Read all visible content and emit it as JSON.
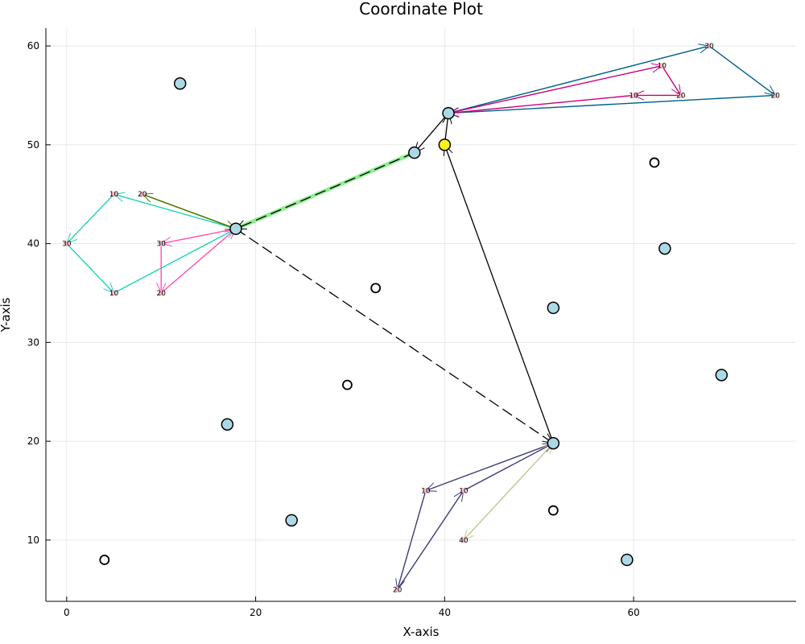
{
  "chart_data": {
    "type": "scatter",
    "title": "Coordinate Plot",
    "xlabel": "X-axis",
    "ylabel": "Y-axis",
    "xlim": [
      -2.2,
      77.2
    ],
    "ylim": [
      3.8,
      61.8
    ],
    "xticks": [
      0,
      20,
      40,
      60
    ],
    "yticks": [
      10,
      20,
      30,
      40,
      50,
      60
    ],
    "grid": true,
    "colors": {
      "filled_marker": "#add8e6",
      "depot_marker": "#ffef1a",
      "marker_stroke": "#000000",
      "point_marker": "#ffc0cb"
    },
    "filled_nodes": [
      {
        "x": 12,
        "y": 56.2
      },
      {
        "x": 40.4,
        "y": 53.2
      },
      {
        "x": 36.8,
        "y": 49.2
      },
      {
        "x": 17.9,
        "y": 41.5
      },
      {
        "x": 63.3,
        "y": 39.5
      },
      {
        "x": 51.5,
        "y": 33.5
      },
      {
        "x": 69.3,
        "y": 26.7
      },
      {
        "x": 17,
        "y": 21.7
      },
      {
        "x": 51.5,
        "y": 19.8
      },
      {
        "x": 23.8,
        "y": 12
      },
      {
        "x": 59.3,
        "y": 8
      }
    ],
    "depot": {
      "x": 40,
      "y": 50
    },
    "hollow_nodes": [
      {
        "x": 62.2,
        "y": 48.2
      },
      {
        "x": 32.7,
        "y": 35.5
      },
      {
        "x": 29.7,
        "y": 25.7
      },
      {
        "x": 51.5,
        "y": 13
      },
      {
        "x": 4,
        "y": 8
      }
    ],
    "main_edges": [
      {
        "from": [
          40,
          50
        ],
        "to": [
          40.4,
          53.2
        ],
        "dashed": false
      },
      {
        "from": [
          40.4,
          53.2
        ],
        "to": [
          36.8,
          49.2
        ],
        "dashed": false
      },
      {
        "from": [
          36.8,
          49.2
        ],
        "to": [
          17.9,
          41.5
        ],
        "dashed": true
      },
      {
        "from": [
          17.9,
          41.5
        ],
        "to": [
          51.5,
          19.8
        ],
        "dashed": true
      },
      {
        "from": [
          51.5,
          19.8
        ],
        "to": [
          40,
          50
        ],
        "dashed": false
      }
    ],
    "highlight_edge": {
      "from": [
        36.8,
        49.2
      ],
      "to": [
        17.9,
        41.5
      ],
      "color": "#90ee90"
    },
    "routes": [
      {
        "color": "#006089",
        "points": [
          [
            40.4,
            53.2
          ],
          [
            68,
            60
          ],
          [
            75,
            55
          ],
          [
            40.4,
            53.2
          ]
        ],
        "labels": [
          "30",
          "20"
        ]
      },
      {
        "color": "#c8007a",
        "points": [
          [
            40.4,
            53.2
          ],
          [
            63,
            58
          ],
          [
            65,
            55
          ],
          [
            60,
            55
          ],
          [
            40.4,
            53.2
          ]
        ],
        "labels": [
          "10",
          "20",
          "10"
        ]
      },
      {
        "color": "#1ed4b4",
        "points": [
          [
            17.9,
            41.5
          ],
          [
            5,
            45
          ],
          [
            0,
            40
          ],
          [
            5,
            35
          ],
          [
            17.9,
            41.5
          ]
        ],
        "labels": [
          "10",
          "30",
          "10"
        ]
      },
      {
        "color": "#4a7a00",
        "points": [
          [
            17.9,
            41.5
          ],
          [
            8,
            45
          ],
          [
            17.9,
            41.5
          ]
        ],
        "labels": [
          "20"
        ]
      },
      {
        "color": "#ff50b4",
        "points": [
          [
            17.9,
            41.5
          ],
          [
            10,
            40
          ],
          [
            10,
            35
          ],
          [
            17.9,
            41.5
          ]
        ],
        "labels": [
          "30",
          "20"
        ]
      },
      {
        "color": "#3c3c78",
        "points": [
          [
            51.5,
            19.8
          ],
          [
            38,
            15
          ],
          [
            35,
            5
          ],
          [
            42,
            15
          ],
          [
            51.5,
            19.8
          ]
        ],
        "labels": [
          "10",
          "20",
          "10"
        ]
      },
      {
        "color": "#c8c8a0",
        "points": [
          [
            51.5,
            19.8
          ],
          [
            42,
            10
          ],
          [
            51.5,
            19.8
          ]
        ],
        "labels": [
          "40"
        ]
      }
    ]
  }
}
